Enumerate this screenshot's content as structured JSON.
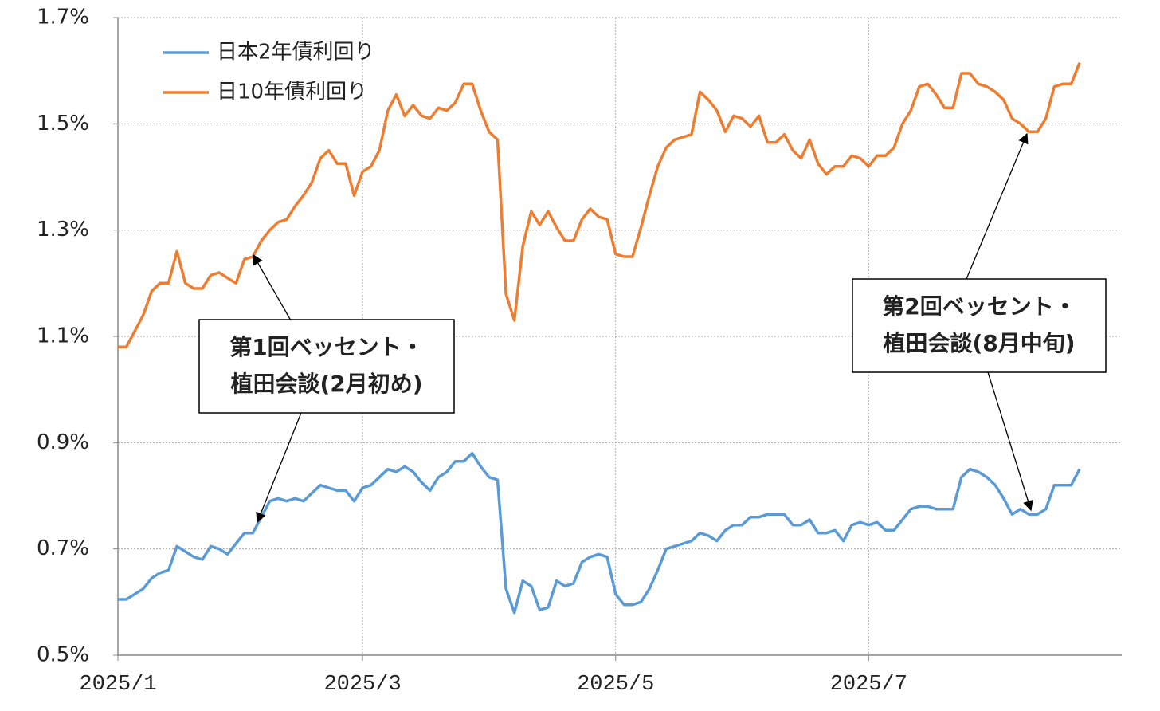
{
  "chart_data": {
    "type": "line",
    "categories": [
      "2025/1",
      null,
      null,
      null,
      null,
      null,
      null,
      null,
      null,
      null,
      null,
      null,
      null,
      null,
      null,
      null,
      null,
      null,
      null,
      null,
      null,
      null,
      null,
      null,
      null,
      null,
      null,
      null,
      null,
      "2025/3",
      null,
      null,
      null,
      null,
      null,
      null,
      null,
      null,
      null,
      null,
      null,
      null,
      null,
      null,
      null,
      null,
      null,
      null,
      null,
      null,
      null,
      null,
      null,
      null,
      null,
      null,
      null,
      null,
      null,
      "2025/5",
      null,
      null,
      null,
      null,
      null,
      null,
      null,
      null,
      null,
      null,
      null,
      null,
      null,
      null,
      null,
      null,
      null,
      null,
      null,
      null,
      null,
      null,
      null,
      null,
      null,
      null,
      null,
      null,
      null,
      "2025/7",
      null,
      null,
      null,
      null,
      null,
      null,
      null,
      null,
      null,
      null,
      null,
      null,
      null,
      null,
      null,
      null,
      null,
      null,
      null,
      null,
      null,
      null,
      null,
      null,
      null
    ],
    "series": [
      {
        "name": "日本2年債利回り",
        "color": "#5b9bd5",
        "values": [
          0.605,
          0.605,
          0.615,
          0.625,
          0.645,
          0.655,
          0.66,
          0.705,
          0.695,
          0.685,
          0.68,
          0.705,
          0.7,
          0.69,
          0.71,
          0.73,
          0.73,
          0.76,
          0.79,
          0.795,
          0.79,
          0.795,
          0.79,
          0.805,
          0.82,
          0.815,
          0.81,
          0.81,
          0.79,
          0.815,
          0.82,
          0.835,
          0.85,
          0.845,
          0.855,
          0.845,
          0.825,
          0.81,
          0.835,
          0.845,
          0.865,
          0.865,
          0.88,
          0.855,
          0.835,
          0.83,
          0.625,
          0.58,
          0.64,
          0.63,
          0.585,
          0.59,
          0.64,
          0.63,
          0.635,
          0.675,
          0.685,
          0.69,
          0.685,
          0.615,
          0.595,
          0.595,
          0.6,
          0.625,
          0.66,
          0.7,
          0.705,
          0.71,
          0.715,
          0.73,
          0.725,
          0.715,
          0.735,
          0.745,
          0.745,
          0.76,
          0.76,
          0.765,
          0.765,
          0.765,
          0.745,
          0.745,
          0.755,
          0.73,
          0.73,
          0.735,
          0.715,
          0.745,
          0.75,
          0.745,
          0.75,
          0.735,
          0.735,
          0.755,
          0.775,
          0.78,
          0.78,
          0.775,
          0.775,
          0.775,
          0.835,
          0.85,
          0.845,
          0.835,
          0.82,
          0.795,
          0.765,
          0.775,
          0.765,
          0.765,
          0.775,
          0.82,
          0.82,
          0.82,
          0.85
        ]
      },
      {
        "name": "日10年債利回り",
        "color": "#ed7d31",
        "values": [
          1.08,
          1.08,
          1.11,
          1.14,
          1.185,
          1.2,
          1.2,
          1.26,
          1.2,
          1.19,
          1.19,
          1.215,
          1.22,
          1.21,
          1.2,
          1.245,
          1.25,
          1.28,
          1.3,
          1.315,
          1.32,
          1.345,
          1.365,
          1.39,
          1.435,
          1.45,
          1.425,
          1.425,
          1.365,
          1.41,
          1.42,
          1.45,
          1.525,
          1.555,
          1.515,
          1.535,
          1.515,
          1.51,
          1.53,
          1.525,
          1.54,
          1.575,
          1.575,
          1.525,
          1.485,
          1.47,
          1.18,
          1.13,
          1.27,
          1.335,
          1.31,
          1.335,
          1.305,
          1.28,
          1.28,
          1.32,
          1.34,
          1.325,
          1.32,
          1.255,
          1.25,
          1.25,
          1.305,
          1.365,
          1.42,
          1.455,
          1.47,
          1.475,
          1.48,
          1.56,
          1.545,
          1.525,
          1.485,
          1.515,
          1.51,
          1.495,
          1.515,
          1.465,
          1.465,
          1.48,
          1.45,
          1.435,
          1.47,
          1.425,
          1.405,
          1.42,
          1.42,
          1.44,
          1.435,
          1.42,
          1.44,
          1.44,
          1.455,
          1.5,
          1.525,
          1.57,
          1.575,
          1.555,
          1.53,
          1.53,
          1.595,
          1.595,
          1.575,
          1.57,
          1.56,
          1.545,
          1.51,
          1.5,
          1.485,
          1.485,
          1.51,
          1.57,
          1.575,
          1.575,
          1.615
        ]
      }
    ],
    "ylim": [
      0.5,
      1.7
    ],
    "yticks": [
      {
        "value": 0.5,
        "label": "0.5%"
      },
      {
        "value": 0.7,
        "label": "0.7%"
      },
      {
        "value": 0.9,
        "label": "0.9%"
      },
      {
        "value": 1.1,
        "label": "1.1%"
      },
      {
        "value": 1.3,
        "label": "1.3%"
      },
      {
        "value": 1.5,
        "label": "1.5%"
      },
      {
        "value": 1.7,
        "label": "1.7%"
      }
    ],
    "grid": true,
    "legend": "upper left",
    "annotations": [
      {
        "lines": [
          "第1回ベッセント・",
          "植田会談(2月初め)"
        ]
      },
      {
        "lines": [
          "第2回ベッセント・",
          "植田会談(8月中旬)"
        ]
      }
    ]
  }
}
